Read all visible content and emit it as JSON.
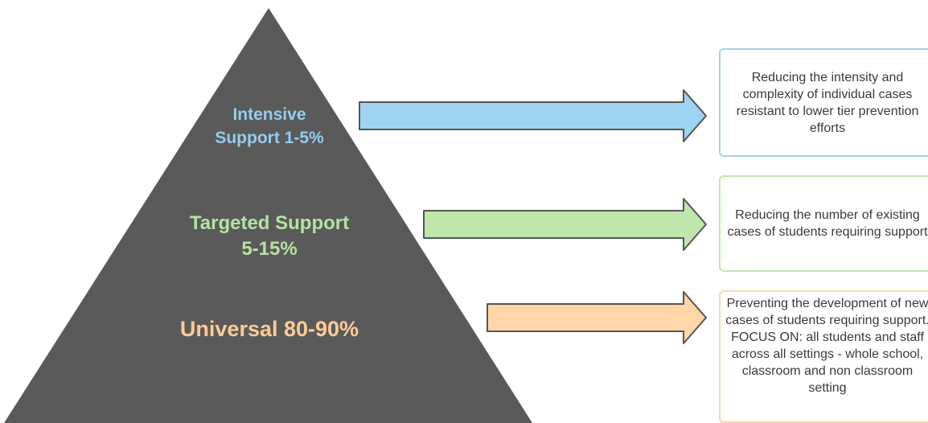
{
  "tiers": [
    {
      "label": "Intensive\nSupport 1-5%",
      "color": "#93cdf0",
      "description": "Reducing the intensity and complexity of individual cases resistant to lower tier prevention efforts"
    },
    {
      "label": "Targeted Support\n5-15%",
      "color": "#b5e3a1",
      "description": "Reducing the number of existing cases of students requiring support"
    },
    {
      "label": "Universal 80-90%",
      "color": "#ffcb94",
      "description": "Preventing the development of new cases of students requiring support.  FOCUS ON: all students and staff across all settings - whole school, classroom and non classroom setting"
    }
  ],
  "colors": {
    "pyramid": "#5a5a5a",
    "arrow_stroke": "#555555"
  }
}
